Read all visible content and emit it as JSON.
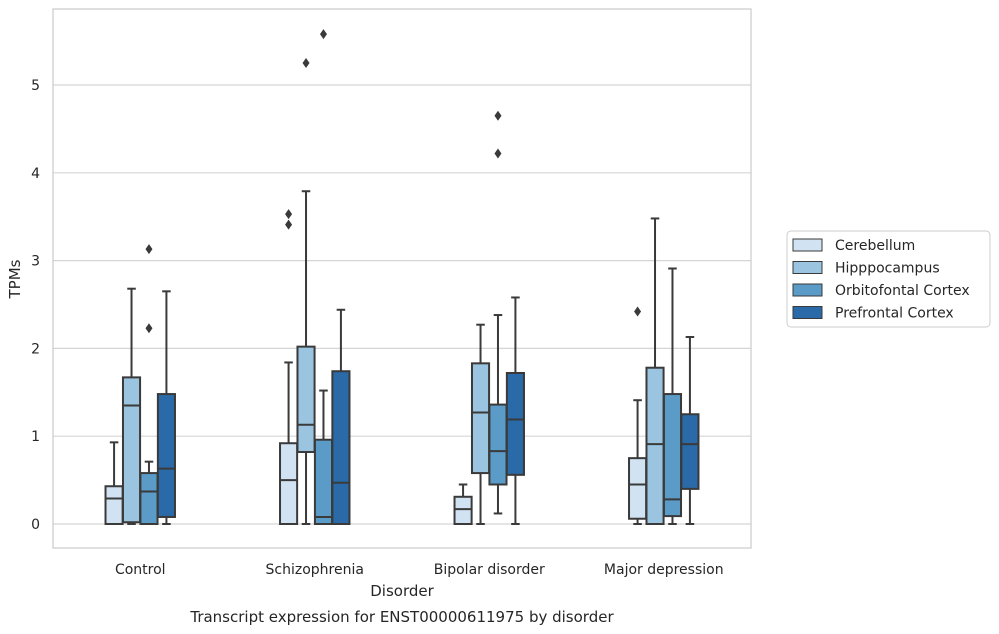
{
  "chart_data": {
    "type": "box",
    "title": "Transcript expression for ENST00000611975 by disorder",
    "xlabel": "Disorder",
    "ylabel": "TPMs",
    "ylim": [
      -0.27,
      5.85
    ],
    "yticks": [
      "0",
      "1",
      "2",
      "3",
      "4",
      "5"
    ],
    "grid": true,
    "legend_position": "right",
    "categories": [
      "Control",
      "Schizophrenia",
      "Bipolar disorder",
      "Major depression"
    ],
    "series": [
      {
        "name": "Cerebellum",
        "color": "#d1e2f2",
        "boxes": [
          {
            "whisker_low": 0,
            "q1": 0,
            "median": 0.29,
            "q3": 0.43,
            "whisker_high": 0.93,
            "outliers": []
          },
          {
            "whisker_low": 0,
            "q1": 0,
            "median": 0.5,
            "q3": 0.92,
            "whisker_high": 1.84,
            "outliers": [
              3.41,
              3.53
            ]
          },
          {
            "whisker_low": 0,
            "q1": 0,
            "median": 0.17,
            "q3": 0.31,
            "whisker_high": 0.45,
            "outliers": []
          },
          {
            "whisker_low": 0,
            "q1": 0.06,
            "median": 0.45,
            "q3": 0.75,
            "whisker_high": 1.41,
            "outliers": [
              2.42
            ]
          }
        ]
      },
      {
        "name": "Hipppocampus",
        "color": "#9ac4df",
        "boxes": [
          {
            "whisker_low": 0,
            "q1": 0.02,
            "median": 1.35,
            "q3": 1.67,
            "whisker_high": 2.68,
            "outliers": []
          },
          {
            "whisker_low": 0,
            "q1": 0.82,
            "median": 1.13,
            "q3": 2.02,
            "whisker_high": 3.79,
            "outliers": [
              5.25
            ]
          },
          {
            "whisker_low": 0,
            "q1": 0.58,
            "median": 1.27,
            "q3": 1.83,
            "whisker_high": 2.27,
            "outliers": []
          },
          {
            "whisker_low": 0,
            "q1": 0,
            "median": 0.91,
            "q3": 1.78,
            "whisker_high": 3.48,
            "outliers": []
          }
        ]
      },
      {
        "name": "Orbitofontal Cortex",
        "color": "#5b9bc8",
        "boxes": [
          {
            "whisker_low": 0,
            "q1": 0,
            "median": 0.37,
            "q3": 0.58,
            "whisker_high": 0.71,
            "outliers": [
              2.23,
              3.13
            ]
          },
          {
            "whisker_low": 0,
            "q1": 0,
            "median": 0.08,
            "q3": 0.96,
            "whisker_high": 1.52,
            "outliers": [
              5.58
            ]
          },
          {
            "whisker_low": 0.12,
            "q1": 0.45,
            "median": 0.83,
            "q3": 1.36,
            "whisker_high": 2.38,
            "outliers": [
              4.22,
              4.65
            ]
          },
          {
            "whisker_low": 0,
            "q1": 0.09,
            "median": 0.28,
            "q3": 1.48,
            "whisker_high": 2.91,
            "outliers": []
          }
        ]
      },
      {
        "name": "Prefrontal Cortex",
        "color": "#2b6aa8",
        "boxes": [
          {
            "whisker_low": 0,
            "q1": 0.08,
            "median": 0.63,
            "q3": 1.48,
            "whisker_high": 2.65,
            "outliers": []
          },
          {
            "whisker_low": 0,
            "q1": 0,
            "median": 0.47,
            "q3": 1.74,
            "whisker_high": 2.44,
            "outliers": []
          },
          {
            "whisker_low": 0,
            "q1": 0.56,
            "median": 1.19,
            "q3": 1.72,
            "whisker_high": 2.58,
            "outliers": []
          },
          {
            "whisker_low": 0,
            "q1": 0.4,
            "median": 0.91,
            "q3": 1.25,
            "whisker_high": 2.13,
            "outliers": []
          }
        ]
      }
    ]
  }
}
